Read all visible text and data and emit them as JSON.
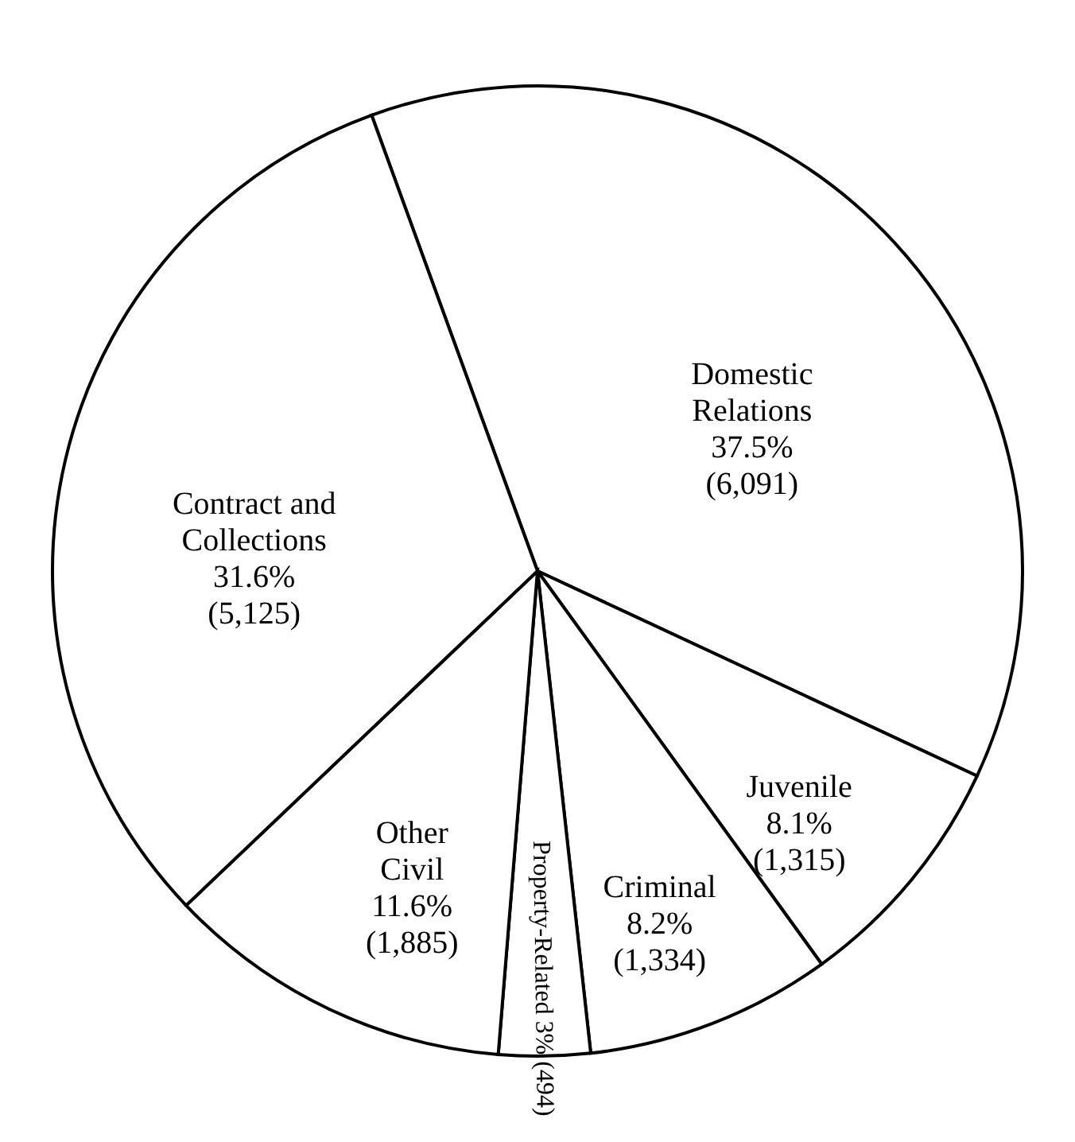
{
  "chart_data": {
    "type": "pie",
    "categories": [
      "Domestic Relations",
      "Juvenile",
      "Criminal",
      "Property-Related",
      "Other Civil",
      "Contract and Collections"
    ],
    "values": [
      6091,
      1315,
      1334,
      494,
      1885,
      5125
    ],
    "colors": [
      "#ffffff",
      "#ffffff",
      "#ffffff",
      "#ffffff",
      "#ffffff",
      "#ffffff"
    ],
    "value_labels": [
      "37.5% (6,091)",
      "8.1% (1,315)",
      "8.2% (1,334)",
      "3% (494)",
      "11.6% (1,885)",
      "31.6% (5,125)"
    ]
  }
}
